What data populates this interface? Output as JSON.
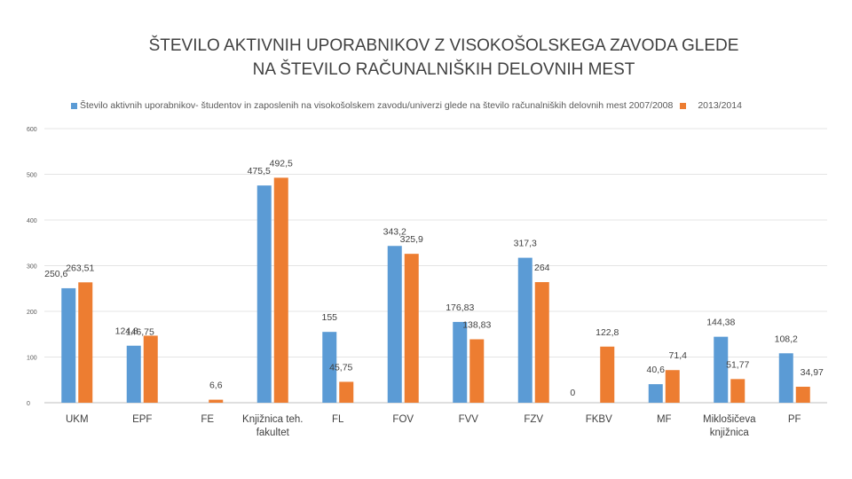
{
  "chart_data": {
    "type": "bar",
    "title": "ŠTEVILO AKTIVNIH UPORABNIKOV Z VISOKOŠOLSKEGA ZAVODA GLEDE NA ŠTEVILO RAČUNALNIŠKIH DELOVNIH MEST",
    "title_lines": [
      "ŠTEVILO AKTIVNIH UPORABNIKOV Z VISOKOŠOLSKEGA ZAVODA GLEDE",
      "NA ŠTEVILO RAČUNALNIŠKIH DELOVNIH MEST"
    ],
    "categories": [
      "UKM",
      "EPF",
      "FE",
      "Knjižnica teh. fakultet",
      "FL",
      "FOV",
      "FVV",
      "FZV",
      "FKBV",
      "MF",
      "Miklošičeva knjižnica",
      "PF"
    ],
    "category_lines": [
      [
        "UKM"
      ],
      [
        "EPF"
      ],
      [
        "FE"
      ],
      [
        "Knjižnica teh.",
        "fakultet"
      ],
      [
        "FL"
      ],
      [
        "FOV"
      ],
      [
        "FVV"
      ],
      [
        "FZV"
      ],
      [
        "FKBV"
      ],
      [
        "MF"
      ],
      [
        "Miklošičeva",
        "knjižnica"
      ],
      [
        "PF"
      ]
    ],
    "series": [
      {
        "name": "Število aktivnih uporabnikov- študentov in zaposlenih na visokošolskem zavodu/univerzi glede na število računalniških delovnih mest  2007/2008",
        "color": "#5B9BD5",
        "values": [
          250.6,
          124.8,
          null,
          475.5,
          155,
          343.2,
          176.83,
          317.3,
          null,
          40.6,
          144.38,
          108.2
        ],
        "labels": [
          "250,6",
          "124,8",
          "",
          "475,5",
          "155",
          "343,2",
          "176,83",
          "317,3",
          "",
          "40,6",
          "144,38",
          "108,2"
        ]
      },
      {
        "name": "2013/2014",
        "color": "#ED7D31",
        "values": [
          263.51,
          146.75,
          6.6,
          492.5,
          45.75,
          325.9,
          138.83,
          264,
          122.8,
          71.4,
          51.77,
          34.97
        ],
        "labels": [
          "263,51",
          "146,75",
          "6,6",
          "492,5",
          "45,75",
          "325,9",
          "138,83",
          "264",
          "122,8",
          "71,4",
          "51,77",
          "34,97"
        ]
      }
    ],
    "extra_labels": [
      "0"
    ],
    "yticks": [
      "0",
      "100",
      "200",
      "300",
      "400",
      "500",
      "600"
    ],
    "ylim": [
      0,
      600
    ],
    "grid": true,
    "legend_position": "top"
  }
}
